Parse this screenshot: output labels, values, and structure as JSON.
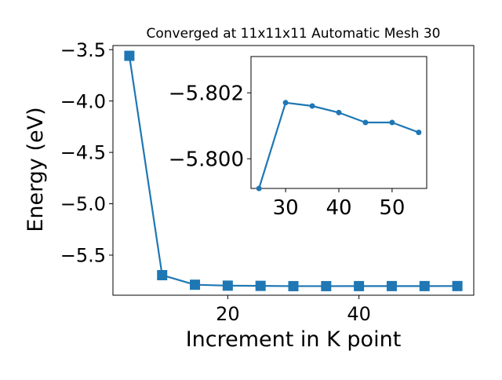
{
  "chart_data": [
    {
      "type": "line",
      "title": "Converged at 11x11x11 Automatic Mesh 30",
      "xlabel": "Increment in K point",
      "ylabel": "Energy (eV)",
      "xlim": [
        2.5,
        57.5
      ],
      "ylim": [
        -5.89,
        -3.46
      ],
      "xticks": [
        20,
        40
      ],
      "xtick_labels": [
        "20",
        "40"
      ],
      "yticks": [
        -3.5,
        -4.0,
        -4.5,
        -5.0,
        -5.5
      ],
      "ytick_labels": [
        "−3.5",
        "−4.0",
        "−4.5",
        "−5.0",
        "−5.5"
      ],
      "grid": false,
      "marker": "square",
      "series": [
        {
          "color": "#1f77b4",
          "x": [
            5,
            10,
            15,
            20,
            25,
            30,
            35,
            40,
            45,
            50,
            55
          ],
          "y": [
            -3.56,
            -5.695,
            -5.788,
            -5.797,
            -5.7991,
            -5.8017,
            -5.8016,
            -5.8014,
            -5.8011,
            -5.8011,
            -5.8008
          ]
        }
      ]
    },
    {
      "type": "line",
      "role": "inset",
      "title": "",
      "xlabel": "",
      "ylabel": "",
      "xlim": [
        23.5,
        56.5
      ],
      "ylim": [
        -5.7991,
        -5.8031
      ],
      "xticks": [
        30,
        40,
        50
      ],
      "xtick_labels": [
        "30",
        "40",
        "50"
      ],
      "yticks": [
        -5.802,
        -5.8
      ],
      "ytick_labels": [
        "−5.802",
        "−5.800"
      ],
      "grid": false,
      "marker": "circle",
      "series": [
        {
          "color": "#1f77b4",
          "x": [
            25,
            30,
            35,
            40,
            45,
            50,
            55
          ],
          "y": [
            -5.7991,
            -5.8017,
            -5.8016,
            -5.8014,
            -5.8011,
            -5.8011,
            -5.8008
          ]
        }
      ]
    }
  ]
}
